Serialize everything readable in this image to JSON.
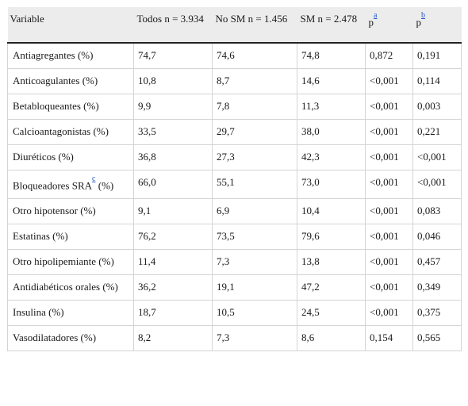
{
  "table": {
    "headers": [
      {
        "text": "Variable",
        "sup": ""
      },
      {
        "text": "Todos n = 3.934",
        "sup": ""
      },
      {
        "text": "No SM n = 1.456",
        "sup": ""
      },
      {
        "text": "SM n = 2.478",
        "sup": ""
      },
      {
        "text": "p",
        "sup": "a"
      },
      {
        "text": "p",
        "sup": "b"
      }
    ],
    "rows": [
      {
        "variable": "Antiagregantes (%)",
        "sup": "",
        "variable_suffix": "",
        "todos": "74,7",
        "no_sm": "74,6",
        "sm": "74,8",
        "pa": "0,872",
        "pb": "0,191"
      },
      {
        "variable": "Anticoagulantes (%)",
        "sup": "",
        "variable_suffix": "",
        "todos": "10,8",
        "no_sm": "8,7",
        "sm": "14,6",
        "pa": "<0,001",
        "pb": "0,114"
      },
      {
        "variable": "Betabloqueantes (%)",
        "sup": "",
        "variable_suffix": "",
        "todos": "9,9",
        "no_sm": "7,8",
        "sm": "11,3",
        "pa": "<0,001",
        "pb": "0,003"
      },
      {
        "variable": "Calcioantagonistas (%)",
        "sup": "",
        "variable_suffix": "",
        "todos": "33,5",
        "no_sm": "29,7",
        "sm": "38,0",
        "pa": "<0,001",
        "pb": "0,221"
      },
      {
        "variable": "Diuréticos (%)",
        "sup": "",
        "variable_suffix": "",
        "todos": "36,8",
        "no_sm": "27,3",
        "sm": "42,3",
        "pa": "<0,001",
        "pb": "<0,001"
      },
      {
        "variable": "Bloqueadores SRA",
        "sup": "c",
        "variable_suffix": " (%)",
        "todos": "66,0",
        "no_sm": "55,1",
        "sm": "73,0",
        "pa": "<0,001",
        "pb": "<0,001"
      },
      {
        "variable": "Otro hipotensor (%)",
        "sup": "",
        "variable_suffix": "",
        "todos": "9,1",
        "no_sm": "6,9",
        "sm": "10,4",
        "pa": "<0,001",
        "pb": "0,083"
      },
      {
        "variable": "Estatinas (%)",
        "sup": "",
        "variable_suffix": "",
        "todos": "76,2",
        "no_sm": "73,5",
        "sm": "79,6",
        "pa": "<0,001",
        "pb": "0,046"
      },
      {
        "variable": "Otro hipolipemiante (%)",
        "sup": "",
        "variable_suffix": "",
        "todos": "11,4",
        "no_sm": "7,3",
        "sm": "13,8",
        "pa": "<0,001",
        "pb": "0,457"
      },
      {
        "variable": "Antidiabéticos orales (%)",
        "sup": "",
        "variable_suffix": "",
        "todos": "36,2",
        "no_sm": "19,1",
        "sm": "47,2",
        "pa": "<0,001",
        "pb": "0,349"
      },
      {
        "variable": "Insulina (%)",
        "sup": "",
        "variable_suffix": "",
        "todos": "18,7",
        "no_sm": "10,5",
        "sm": "24,5",
        "pa": "<0,001",
        "pb": "0,375"
      },
      {
        "variable": "Vasodilatadores (%)",
        "sup": "",
        "variable_suffix": "",
        "todos": "8,2",
        "no_sm": "7,3",
        "sm": "8,6",
        "pa": "0,154",
        "pb": "0,565"
      }
    ]
  },
  "colors": {
    "header_bg": "#ececec",
    "header_rule": "#222222",
    "cell_border": "#d4d4d4",
    "footnote_link": "#2255cc"
  }
}
